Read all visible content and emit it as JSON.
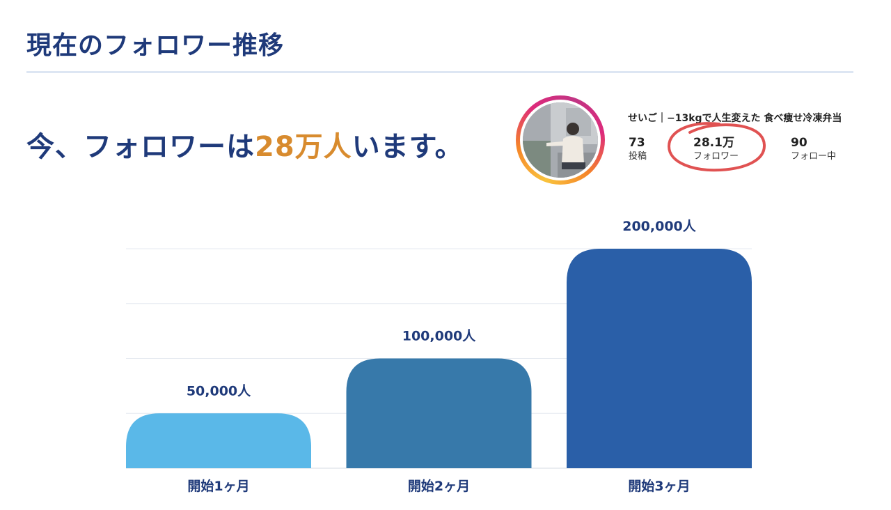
{
  "page": {
    "title": "現在のフォロワー推移",
    "headline_prefix": "今、フォロワーは",
    "headline_highlight": "28万人",
    "headline_suffix": "います。"
  },
  "profile": {
    "name": "せいご｜−13kgで人生変えた 食べ痩せ冷凍弁当",
    "stats": [
      {
        "value": "73",
        "label": "投稿"
      },
      {
        "value": "28.1万",
        "label": "フォロワー"
      },
      {
        "value": "90",
        "label": "フォロー中"
      }
    ],
    "highlight_color": "#e05252"
  },
  "colors": {
    "title": "#1f3a7a",
    "accent": "#d88b2e",
    "gridline": "#e6eaf0"
  },
  "chart_data": {
    "type": "bar",
    "categories": [
      "開始1ヶ月",
      "開始2ヶ月",
      "開始3ヶ月"
    ],
    "values": [
      50000,
      100000,
      200000
    ],
    "value_labels": [
      "50,000人",
      "100,000人",
      "200,000人"
    ],
    "colors": [
      "#5ab8e8",
      "#3779aa",
      "#2a5fa8"
    ],
    "ylim": [
      0,
      200000
    ],
    "grid": true
  }
}
